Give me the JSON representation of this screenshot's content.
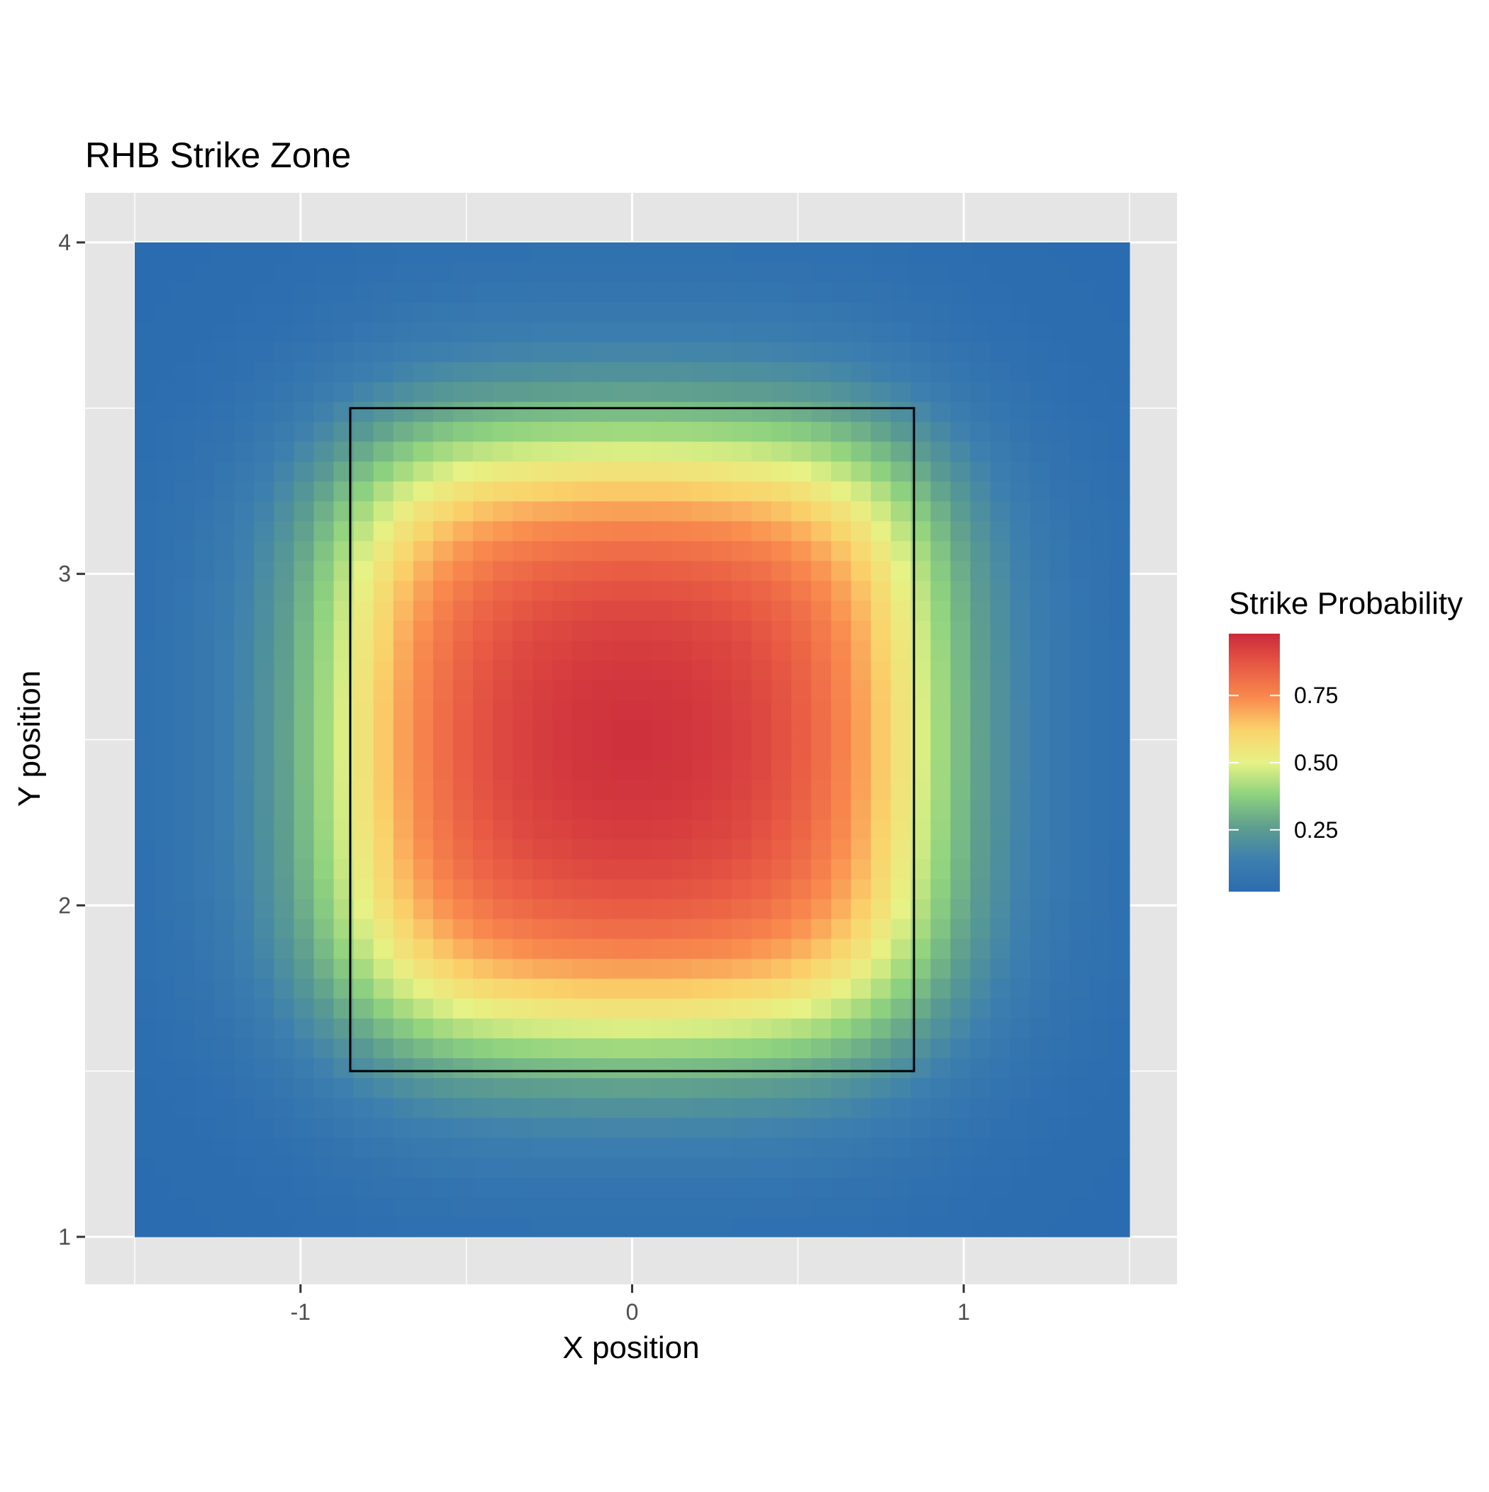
{
  "chart_data": {
    "type": "heatmap",
    "title": "RHB Strike Zone",
    "xlabel": "X position",
    "ylabel": "Y position",
    "xlim": [
      -1.5,
      1.5
    ],
    "ylim": [
      1.0,
      4.0
    ],
    "x_ticks": [
      -1,
      0,
      1
    ],
    "x_tick_labels": [
      "-1",
      "0",
      "1"
    ],
    "y_ticks": [
      1,
      2,
      3,
      4
    ],
    "y_tick_labels": [
      "1",
      "2",
      "3",
      "4"
    ],
    "grid": true,
    "grid_cells": [
      50,
      50
    ],
    "strike_zone": {
      "x": [
        -0.85,
        0.85
      ],
      "y": [
        1.5,
        3.5
      ]
    },
    "value_surface": {
      "description_free": true,
      "x_center": 0.0,
      "y_center": 2.5,
      "x_half_width": 1.05,
      "y_half_width": 1.05,
      "edge_softness": 0.18,
      "max_value": 0.98,
      "min_value": 0.02
    },
    "legend": {
      "title": "Strike Probability",
      "placement": "right",
      "ticks": [
        0.25,
        0.5,
        0.75
      ],
      "tick_labels": [
        "0.25",
        "0.50",
        "0.75"
      ],
      "range": [
        0.02,
        0.98
      ]
    },
    "colormap": [
      "#2b6cb0",
      "#3d7fae",
      "#5e9e8f",
      "#8fd27e",
      "#e6f285",
      "#fad36c",
      "#f98b4e",
      "#e85a44",
      "#ca2a3b"
    ],
    "panel_background": "#e5e5e5",
    "grid_color": "#ffffff",
    "zone_outline_color": "#000000"
  }
}
